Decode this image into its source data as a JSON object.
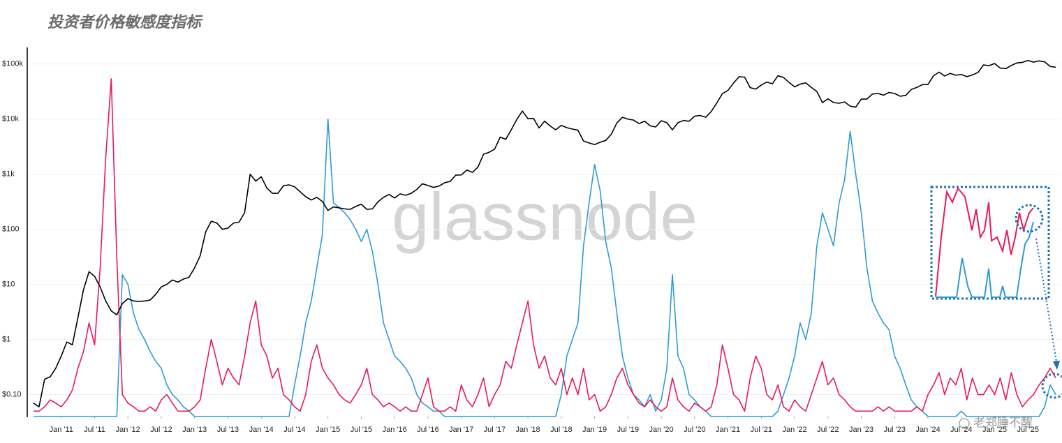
{
  "chart_data": {
    "type": "line",
    "title": "投资者价格敏感度指标",
    "watermark": "glassnode",
    "credit": "老郑睡不醒",
    "log_scale": true,
    "grid": true,
    "x": [
      "2010-08",
      "2010-09",
      "2010-10",
      "2010-11",
      "2010-12",
      "2011-01",
      "2011-02",
      "2011-03",
      "2011-04",
      "2011-05",
      "2011-06",
      "2011-07",
      "2011-08",
      "2011-09",
      "2011-10",
      "2011-11",
      "2011-12",
      "2012-01",
      "2012-02",
      "2012-03",
      "2012-04",
      "2012-05",
      "2012-06",
      "2012-07",
      "2012-08",
      "2012-09",
      "2012-10",
      "2012-11",
      "2012-12",
      "2013-01",
      "2013-02",
      "2013-03",
      "2013-04",
      "2013-05",
      "2013-06",
      "2013-07",
      "2013-08",
      "2013-09",
      "2013-10",
      "2013-11",
      "2013-12",
      "2014-01",
      "2014-02",
      "2014-03",
      "2014-04",
      "2014-05",
      "2014-06",
      "2014-07",
      "2014-08",
      "2014-09",
      "2014-10",
      "2014-11",
      "2014-12",
      "2015-01",
      "2015-02",
      "2015-03",
      "2015-04",
      "2015-05",
      "2015-06",
      "2015-07",
      "2015-08",
      "2015-09",
      "2015-10",
      "2015-11",
      "2015-12",
      "2016-01",
      "2016-02",
      "2016-03",
      "2016-04",
      "2016-05",
      "2016-06",
      "2016-07",
      "2016-08",
      "2016-09",
      "2016-10",
      "2016-11",
      "2016-12",
      "2017-01",
      "2017-02",
      "2017-03",
      "2017-04",
      "2017-05",
      "2017-06",
      "2017-07",
      "2017-08",
      "2017-09",
      "2017-10",
      "2017-11",
      "2017-12",
      "2018-01",
      "2018-02",
      "2018-03",
      "2018-04",
      "2018-05",
      "2018-06",
      "2018-07",
      "2018-08",
      "2018-09",
      "2018-10",
      "2018-11",
      "2018-12",
      "2019-01",
      "2019-02",
      "2019-03",
      "2019-04",
      "2019-05",
      "2019-06",
      "2019-07",
      "2019-08",
      "2019-09",
      "2019-10",
      "2019-11",
      "2019-12",
      "2020-01",
      "2020-02",
      "2020-03",
      "2020-04",
      "2020-05",
      "2020-06",
      "2020-07",
      "2020-08",
      "2020-09",
      "2020-10",
      "2020-11",
      "2020-12",
      "2021-01",
      "2021-02",
      "2021-03",
      "2021-04",
      "2021-05",
      "2021-06",
      "2021-07",
      "2021-08",
      "2021-09",
      "2021-10",
      "2021-11",
      "2021-12",
      "2022-01",
      "2022-02",
      "2022-03",
      "2022-04",
      "2022-05",
      "2022-06",
      "2022-07",
      "2022-08",
      "2022-09",
      "2022-10",
      "2022-11",
      "2022-12",
      "2023-01",
      "2023-02",
      "2023-03",
      "2023-04",
      "2023-05",
      "2023-06",
      "2023-07",
      "2023-08",
      "2023-09",
      "2023-10",
      "2023-11",
      "2023-12",
      "2024-01",
      "2024-02",
      "2024-03",
      "2024-04",
      "2024-05",
      "2024-06",
      "2024-07",
      "2024-08",
      "2024-09",
      "2024-10",
      "2024-11",
      "2024-12",
      "2025-01",
      "2025-02",
      "2025-03",
      "2025-04",
      "2025-05",
      "2025-06",
      "2025-07",
      "2025-08",
      "2025-09",
      "2025-10",
      "2025-11",
      "2025-12"
    ],
    "series": [
      {
        "color": "#000000",
        "values": [
          0.07,
          0.06,
          0.19,
          0.21,
          0.3,
          0.5,
          0.9,
          0.8,
          2.5,
          8,
          17,
          14,
          9,
          5,
          3.3,
          2.8,
          4.5,
          5.5,
          5,
          4.9,
          5,
          5.2,
          6.6,
          9,
          10,
          12,
          11,
          12.5,
          13.5,
          20,
          33,
          90,
          140,
          130,
          100,
          105,
          130,
          135,
          200,
          1000,
          750,
          900,
          560,
          450,
          450,
          620,
          640,
          590,
          480,
          390,
          340,
          380,
          320,
          220,
          255,
          245,
          235,
          230,
          260,
          285,
          230,
          235,
          315,
          380,
          430,
          370,
          440,
          415,
          450,
          530,
          670,
          625,
          575,
          610,
          700,
          740,
          960,
          970,
          1190,
          1080,
          1350,
          2300,
          2500,
          2850,
          4700,
          4300,
          6400,
          9900,
          14000,
          10200,
          10300,
          6900,
          9200,
          7500,
          6400,
          7700,
          7000,
          6600,
          6300,
          4000,
          3700,
          3450,
          3800,
          4100,
          5300,
          8500,
          10800,
          10000,
          9600,
          8300,
          9150,
          7550,
          7200,
          9350,
          8600,
          6400,
          8600,
          9450,
          9150,
          11300,
          11650,
          10800,
          13800,
          19700,
          29000,
          33100,
          45100,
          58800,
          57700,
          37300,
          35000,
          41500,
          47100,
          43800,
          61300,
          57000,
          46300,
          38500,
          43200,
          45500,
          37700,
          31800,
          19900,
          23300,
          20000,
          19400,
          20500,
          17200,
          16500,
          23100,
          23100,
          28500,
          29200,
          27200,
          30500,
          29200,
          26000,
          27000,
          34500,
          37700,
          42300,
          42600,
          61200,
          71300,
          60600,
          67500,
          62700,
          64600,
          58900,
          63300,
          70200,
          96400,
          93400,
          102400,
          84400,
          82500,
          94200,
          104600,
          107100,
          115700,
          108200,
          114000,
          109500,
          90400,
          87500
        ]
      },
      {
        "color": "#e8195a",
        "values": [
          0.05,
          0.05,
          0.06,
          0.08,
          0.07,
          0.06,
          0.08,
          0.12,
          0.3,
          0.6,
          2,
          0.8,
          20,
          2000,
          54000,
          30,
          0.1,
          0.07,
          0.06,
          0.05,
          0.05,
          0.06,
          0.05,
          0.08,
          0.1,
          0.07,
          0.05,
          0.05,
          0.05,
          0.06,
          0.08,
          0.3,
          1,
          0.4,
          0.15,
          0.3,
          0.2,
          0.15,
          0.5,
          2,
          5,
          0.8,
          0.5,
          0.2,
          0.3,
          0.1,
          0.08,
          0.06,
          0.05,
          0.1,
          0.4,
          0.8,
          0.3,
          0.2,
          0.15,
          0.1,
          0.08,
          0.07,
          0.1,
          0.15,
          0.3,
          0.1,
          0.08,
          0.06,
          0.07,
          0.06,
          0.05,
          0.06,
          0.05,
          0.05,
          0.1,
          0.2,
          0.06,
          0.05,
          0.05,
          0.06,
          0.05,
          0.15,
          0.08,
          0.06,
          0.1,
          0.2,
          0.06,
          0.1,
          0.15,
          0.4,
          0.3,
          0.8,
          2,
          5,
          0.8,
          0.3,
          0.5,
          0.2,
          0.15,
          0.3,
          0.1,
          0.2,
          0.1,
          0.3,
          0.08,
          0.1,
          0.05,
          0.06,
          0.1,
          0.2,
          0.3,
          0.15,
          0.1,
          0.07,
          0.06,
          0.08,
          0.06,
          0.05,
          0.06,
          0.2,
          0.08,
          0.06,
          0.05,
          0.07,
          0.06,
          0.05,
          0.06,
          0.15,
          0.8,
          0.3,
          0.1,
          0.08,
          0.05,
          0.2,
          0.5,
          0.3,
          0.1,
          0.08,
          0.15,
          0.06,
          0.05,
          0.08,
          0.06,
          0.05,
          0.1,
          0.2,
          0.4,
          0.15,
          0.2,
          0.1,
          0.08,
          0.06,
          0.05,
          0.05,
          0.05,
          0.05,
          0.06,
          0.05,
          0.06,
          0.05,
          0.05,
          0.05,
          0.05,
          0.06,
          0.05,
          0.1,
          0.15,
          0.25,
          0.1,
          0.2,
          0.15,
          0.3,
          0.08,
          0.2,
          0.1,
          0.1,
          0.15,
          0.1,
          0.2,
          0.08,
          0.25,
          0.1,
          0.06,
          0.08,
          0.1,
          0.15,
          0.2,
          0.3,
          0.2
        ]
      },
      {
        "color": "#2e9bd6",
        "values": [
          0.04,
          0.04,
          0.04,
          0.04,
          0.04,
          0.04,
          0.04,
          0.04,
          0.04,
          0.04,
          0.04,
          0.04,
          0.04,
          0.04,
          0.04,
          0.04,
          15,
          10,
          3,
          1.5,
          1,
          0.6,
          0.4,
          0.3,
          0.15,
          0.1,
          0.08,
          0.06,
          0.05,
          0.04,
          0.04,
          0.04,
          0.04,
          0.04,
          0.04,
          0.04,
          0.04,
          0.04,
          0.04,
          0.04,
          0.04,
          0.04,
          0.04,
          0.04,
          0.04,
          0.04,
          0.04,
          0.15,
          0.5,
          2,
          5,
          20,
          80,
          10000,
          300,
          250,
          200,
          150,
          100,
          60,
          100,
          40,
          10,
          2,
          1,
          0.5,
          0.4,
          0.3,
          0.2,
          0.1,
          0.07,
          0.06,
          0.05,
          0.05,
          0.04,
          0.04,
          0.04,
          0.04,
          0.04,
          0.04,
          0.04,
          0.04,
          0.04,
          0.04,
          0.04,
          0.04,
          0.04,
          0.04,
          0.04,
          0.04,
          0.04,
          0.04,
          0.04,
          0.04,
          0.04,
          0.1,
          0.5,
          1,
          2,
          50,
          300,
          1500,
          500,
          60,
          20,
          3,
          0.5,
          0.2,
          0.1,
          0.08,
          0.06,
          0.1,
          0.05,
          0.08,
          0.3,
          15,
          0.5,
          0.3,
          0.1,
          0.08,
          0.06,
          0.05,
          0.04,
          0.04,
          0.04,
          0.04,
          0.04,
          0.04,
          0.04,
          0.04,
          0.04,
          0.04,
          0.04,
          0.04,
          0.05,
          0.1,
          0.2,
          0.5,
          2,
          1,
          3,
          50,
          200,
          100,
          50,
          300,
          800,
          6000,
          1000,
          200,
          20,
          5,
          3,
          2,
          1.5,
          0.5,
          0.3,
          0.15,
          0.08,
          0.06,
          0.05,
          0.04,
          0.04,
          0.04,
          0.04,
          0.04,
          0.04,
          0.05,
          0.04,
          0.04,
          0.04,
          0.04,
          0.04,
          0.04,
          0.04,
          0.04,
          0.04,
          0.04,
          0.04,
          0.04,
          0.04,
          0.04,
          0.06,
          0.15,
          0.1
        ]
      }
    ],
    "xlim": [
      "2010-07",
      "2026-01"
    ],
    "xticks": [
      {
        "value": "2011-01",
        "label": "Jan '11"
      },
      {
        "value": "2011-07",
        "label": "Jul '11"
      },
      {
        "value": "2012-01",
        "label": "Jan '12"
      },
      {
        "value": "2012-07",
        "label": "Jul '12"
      },
      {
        "value": "2013-01",
        "label": "Jan '13"
      },
      {
        "value": "2013-07",
        "label": "Jul '13"
      },
      {
        "value": "2014-01",
        "label": "Jan '14"
      },
      {
        "value": "2014-07",
        "label": "Jul '14"
      },
      {
        "value": "2015-01",
        "label": "Jan '15"
      },
      {
        "value": "2015-07",
        "label": "Jul '15"
      },
      {
        "value": "2016-01",
        "label": "Jan '16"
      },
      {
        "value": "2016-07",
        "label": "Jul '16"
      },
      {
        "value": "2017-01",
        "label": "Jan '17"
      },
      {
        "value": "2017-07",
        "label": "Jul '17"
      },
      {
        "value": "2018-01",
        "label": "Jan '18"
      },
      {
        "value": "2018-07",
        "label": "Jul '18"
      },
      {
        "value": "2019-01",
        "label": "Jan '19"
      },
      {
        "value": "2019-07",
        "label": "Jul '19"
      },
      {
        "value": "2020-01",
        "label": "Jan '20"
      },
      {
        "value": "2020-07",
        "label": "Jul '20"
      },
      {
        "value": "2021-01",
        "label": "Jan '21"
      },
      {
        "value": "2021-07",
        "label": "Jul '21"
      },
      {
        "value": "2022-01",
        "label": "Jan '22"
      },
      {
        "value": "2022-07",
        "label": "Jul '22"
      },
      {
        "value": "2023-01",
        "label": "Jan '23"
      },
      {
        "value": "2023-07",
        "label": "Jul '23"
      },
      {
        "value": "2024-01",
        "label": "Jan '24"
      },
      {
        "value": "2024-07",
        "label": "Jul '24"
      },
      {
        "value": "2025-01",
        "label": "Jan '25"
      },
      {
        "value": "2025-07",
        "label": "Jul '25"
      }
    ],
    "ylim": [
      0.04,
      200000
    ],
    "yticks": [
      {
        "value": 0.1,
        "label": "$0.10"
      },
      {
        "value": 1,
        "label": "$1"
      },
      {
        "value": 10,
        "label": "$10"
      },
      {
        "value": 100,
        "label": "$100"
      },
      {
        "value": 1000,
        "label": "$1k"
      },
      {
        "value": 10000,
        "label": "$10k"
      },
      {
        "value": 100000,
        "label": "$100k"
      }
    ]
  }
}
